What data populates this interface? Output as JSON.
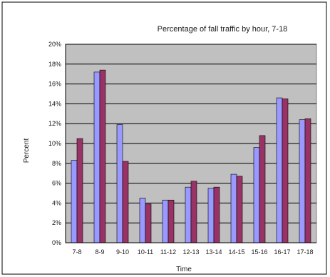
{
  "chart_data": {
    "type": "bar",
    "title": "Percentage of fall traffic by hour, 7-18",
    "xlabel": "Time",
    "ylabel": "Percent",
    "categories": [
      "7-8",
      "8-9",
      "9-10",
      "10-11",
      "11-12",
      "12-13",
      "13-14",
      "14-15",
      "15-16",
      "16-17",
      "17-18"
    ],
    "series": [
      {
        "values": [
          8.3,
          17.2,
          11.9,
          4.5,
          4.3,
          5.6,
          5.5,
          6.9,
          9.6,
          14.6,
          12.4
        ]
      },
      {
        "values": [
          10.5,
          17.4,
          8.2,
          3.9,
          4.3,
          6.2,
          5.6,
          6.7,
          10.8,
          14.5,
          12.5
        ]
      }
    ],
    "ylim": [
      0,
      20
    ],
    "yticks": [
      "0%",
      "2%",
      "4%",
      "6%",
      "8%",
      "10%",
      "12%",
      "14%",
      "16%",
      "18%",
      "20%"
    ],
    "grid": true,
    "legend": "none",
    "colors": {
      "plot_background": "#c0c0c0",
      "series_1": "#9999ff",
      "series_2": "#993366",
      "gridline": "#000000",
      "frame_border": "#000000"
    }
  }
}
